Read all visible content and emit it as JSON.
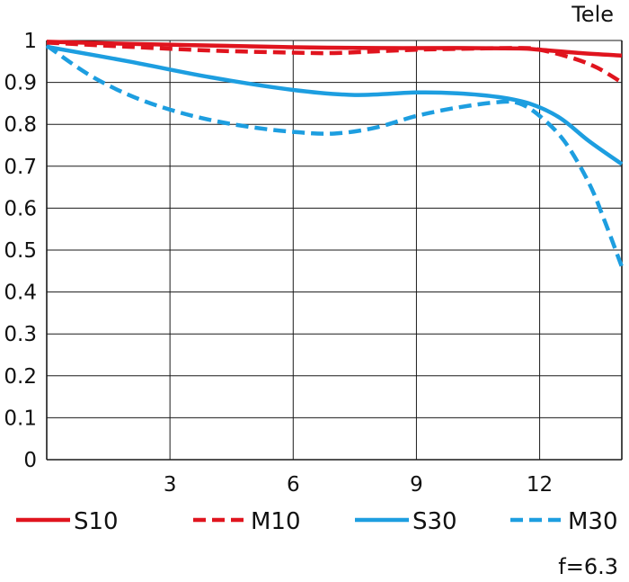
{
  "chart_data": {
    "type": "line",
    "title": "Tele",
    "footnote": "f=6.3",
    "xlabel": "",
    "ylabel": "",
    "xlim": [
      0,
      14
    ],
    "ylim": [
      0,
      1
    ],
    "grid": true,
    "legend_position": "bottom",
    "x_ticks": [
      {
        "value": 3,
        "label": "3"
      },
      {
        "value": 6,
        "label": "6"
      },
      {
        "value": 9,
        "label": "9"
      },
      {
        "value": 12,
        "label": "12"
      }
    ],
    "y_ticks": [
      {
        "value": 0,
        "label": "0"
      },
      {
        "value": 0.1,
        "label": "0.1"
      },
      {
        "value": 0.2,
        "label": "0.2"
      },
      {
        "value": 0.3,
        "label": "0.3"
      },
      {
        "value": 0.4,
        "label": "0.4"
      },
      {
        "value": 0.5,
        "label": "0.5"
      },
      {
        "value": 0.6,
        "label": "0.6"
      },
      {
        "value": 0.7,
        "label": "0.7"
      },
      {
        "value": 0.8,
        "label": "0.8"
      },
      {
        "value": 0.9,
        "label": "0.9"
      },
      {
        "value": 1,
        "label": "1"
      }
    ],
    "series": [
      {
        "name": "S10",
        "color": "#e0141e",
        "dash": "solid",
        "points": [
          [
            0,
            0.997
          ],
          [
            2,
            0.992
          ],
          [
            4,
            0.988
          ],
          [
            6,
            0.984
          ],
          [
            8,
            0.982
          ],
          [
            10,
            0.982
          ],
          [
            11.5,
            0.981
          ],
          [
            12,
            0.978
          ],
          [
            13,
            0.97
          ],
          [
            14,
            0.964
          ]
        ]
      },
      {
        "name": "M10",
        "color": "#e0141e",
        "dash": "dashed",
        "points": [
          [
            0,
            0.995
          ],
          [
            2,
            0.985
          ],
          [
            4,
            0.976
          ],
          [
            6,
            0.971
          ],
          [
            7,
            0.97
          ],
          [
            8,
            0.974
          ],
          [
            9,
            0.978
          ],
          [
            10,
            0.98
          ],
          [
            11.5,
            0.982
          ],
          [
            12,
            0.978
          ],
          [
            12.8,
            0.958
          ],
          [
            13.4,
            0.935
          ],
          [
            14,
            0.9
          ]
        ]
      },
      {
        "name": "S30",
        "color": "#1d9ee0",
        "dash": "solid",
        "points": [
          [
            0,
            0.985
          ],
          [
            2,
            0.95
          ],
          [
            4,
            0.912
          ],
          [
            6,
            0.882
          ],
          [
            7.5,
            0.87
          ],
          [
            9,
            0.876
          ],
          [
            10,
            0.874
          ],
          [
            11,
            0.865
          ],
          [
            11.8,
            0.848
          ],
          [
            12.5,
            0.815
          ],
          [
            13.2,
            0.76
          ],
          [
            14,
            0.705
          ]
        ]
      },
      {
        "name": "M30",
        "color": "#1d9ee0",
        "dash": "dashed",
        "points": [
          [
            0,
            0.988
          ],
          [
            1,
            0.92
          ],
          [
            2,
            0.87
          ],
          [
            3,
            0.835
          ],
          [
            4,
            0.81
          ],
          [
            5,
            0.793
          ],
          [
            6,
            0.782
          ],
          [
            7,
            0.778
          ],
          [
            8,
            0.792
          ],
          [
            9,
            0.82
          ],
          [
            10,
            0.84
          ],
          [
            11,
            0.853
          ],
          [
            11.5,
            0.85
          ],
          [
            12,
            0.82
          ],
          [
            12.6,
            0.76
          ],
          [
            13.2,
            0.66
          ],
          [
            13.6,
            0.565
          ],
          [
            14,
            0.46
          ]
        ]
      }
    ]
  }
}
